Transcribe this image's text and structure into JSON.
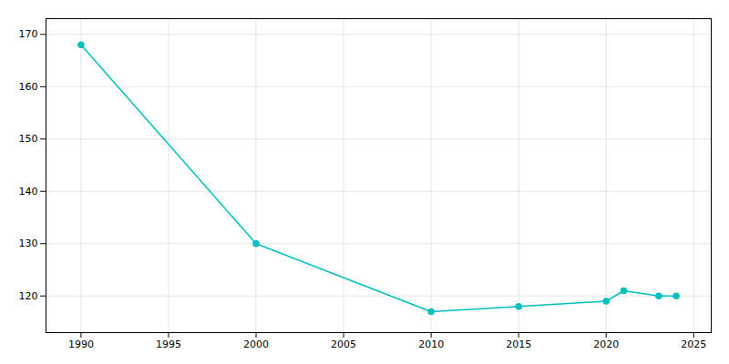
{
  "chart_data": {
    "type": "line",
    "x": [
      1990,
      2000,
      2010,
      2015,
      2020,
      2021,
      2023,
      2024
    ],
    "values": [
      168,
      130,
      117,
      118,
      119,
      121,
      120,
      120
    ],
    "color": "#00BFBF",
    "marker": "circle",
    "xlim": [
      1988,
      2026
    ],
    "ylim": [
      113,
      173
    ],
    "xticks": [
      1990,
      1995,
      2000,
      2005,
      2010,
      2015,
      2020,
      2025
    ],
    "yticks": [
      120,
      130,
      140,
      150,
      160,
      170
    ],
    "grid": true
  }
}
